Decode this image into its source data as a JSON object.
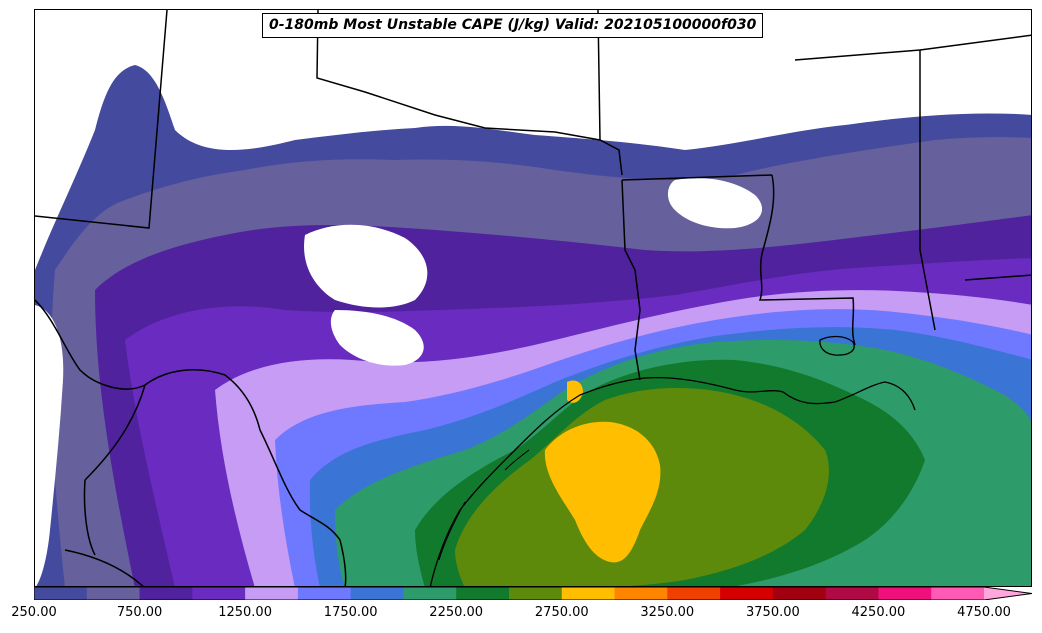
{
  "map": {
    "title": "0-180mb Most Unstable CAPE (J/kg) Valid: 202105100000f030",
    "region": "Texas / Louisiana / Gulf Coast"
  },
  "colorbar": {
    "extend": "max",
    "levels": [
      250,
      500,
      750,
      1000,
      1250,
      1500,
      1750,
      2000,
      2250,
      2500,
      2750,
      3000,
      3250,
      3500,
      3750,
      4000,
      4250,
      4500,
      4750
    ],
    "colors": [
      "#444a9e",
      "#66609c",
      "#50229e",
      "#6a2cc0",
      "#c79cf5",
      "#6e79ff",
      "#3a74d4",
      "#2e9b6a",
      "#127a2c",
      "#5e8a0c",
      "#ffbe00",
      "#ff8400",
      "#f04000",
      "#d40000",
      "#a00010",
      "#b00a44",
      "#f0107c",
      "#ff5ab4"
    ],
    "extend_color": "#ffa6dc",
    "tick_labels": [
      "250.00",
      "750.00",
      "1250.00",
      "1750.00",
      "2250.00",
      "2750.00",
      "3250.00",
      "3750.00",
      "4250.00",
      "4750.00"
    ]
  }
}
